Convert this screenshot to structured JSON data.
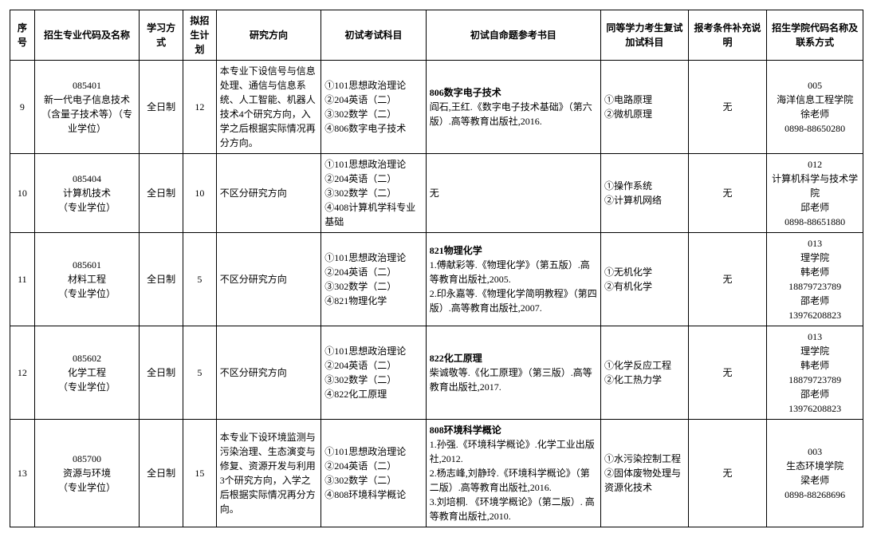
{
  "headers": {
    "seq": "序号",
    "major": "招生专业代码及名称",
    "mode": "学习方式",
    "plan": "拟招生计划",
    "dir": "研究方向",
    "exam": "初试考试科目",
    "ref": "初试自命题参考书目",
    "extra": "同等学力考生复试加试科目",
    "note": "报考条件补充说明",
    "contact": "招生学院代码名称及联系方式"
  },
  "rows": [
    {
      "seq": "9",
      "major": "085401\n新一代电子信息技术（含量子技术等）（专业学位）",
      "mode": "全日制",
      "plan": "12",
      "dir": "本专业下设信号与信息处理、通信与信息系统、人工智能、机器人技术4个研究方向，入学之后根据实际情况再分方向。",
      "exam": "①101思想政治理论\n②204英语（二）\n③302数学（二）\n④806数字电子技术",
      "ref_title": "806数字电子技术",
      "ref_body": "阎石,王红.《数字电子技术基础》（第六版）.高等教育出版社,2016.",
      "extra": "①电路原理\n②微机原理",
      "note": "无",
      "contact": "005\n海洋信息工程学院\n徐老师\n0898-88650280"
    },
    {
      "seq": "10",
      "major": "085404\n计算机技术\n（专业学位）",
      "mode": "全日制",
      "plan": "10",
      "dir": "不区分研究方向",
      "exam": "①101思想政治理论\n②204英语（二）\n③302数学（二）\n④408计算机学科专业基础",
      "ref_title": "",
      "ref_body": "无",
      "extra": "①操作系统\n②计算机网络",
      "note": "无",
      "contact": "012\n计算机科学与技术学院\n邱老师\n0898-88651880"
    },
    {
      "seq": "11",
      "major": "085601\n材料工程\n（专业学位）",
      "mode": "全日制",
      "plan": "5",
      "dir": "不区分研究方向",
      "exam": "①101思想政治理论\n②204英语（二）\n③302数学（二）\n④821物理化学",
      "ref_title": "821物理化学",
      "ref_body": "1.傅献彩等.《物理化学》（第五版）.高等教育出版社,2005.\n2.印永嘉等.《物理化学简明教程》（第四版）.高等教育出版社,2007.",
      "extra": "①无机化学\n②有机化学",
      "note": "无",
      "contact": "013\n理学院\n韩老师\n18879723789\n邵老师\n13976208823"
    },
    {
      "seq": "12",
      "major": "085602\n化学工程\n（专业学位）",
      "mode": "全日制",
      "plan": "5",
      "dir": "不区分研究方向",
      "exam": "①101思想政治理论\n②204英语（二）\n③302数学（二）\n④822化工原理",
      "ref_title": "822化工原理",
      "ref_body": "柴诚敬等.《化工原理》（第三版）.高等教育出版社,2017.",
      "extra": "①化学反应工程\n②化工热力学",
      "note": "无",
      "contact": "013\n理学院\n韩老师\n18879723789\n邵老师\n13976208823"
    },
    {
      "seq": "13",
      "major": "085700\n资源与环境\n（专业学位）",
      "mode": "全日制",
      "plan": "15",
      "dir": "本专业下设环境监测与污染治理、生态演变与修复、资源开发与利用3个研究方向，入学之后根据实际情况再分方向。",
      "exam": "①101思想政治理论\n②204英语（二）\n③302数学（二）\n④808环境科学概论",
      "ref_title": "808环境科学概论",
      "ref_body": "1.孙强.《环境科学概论》.化学工业出版社,2012.\n2.杨志峰,刘静玲.《环境科学概论》（第二版）.高等教育出版社,2016.\n3.刘培桐. 《环境学概论》（第二版）. 高等教育出版社,2010.",
      "extra": "①水污染控制工程\n②固体废物处理与资源化技术",
      "note": "无",
      "contact": "003\n生态环境学院\n梁老师\n0898-88268696"
    }
  ]
}
